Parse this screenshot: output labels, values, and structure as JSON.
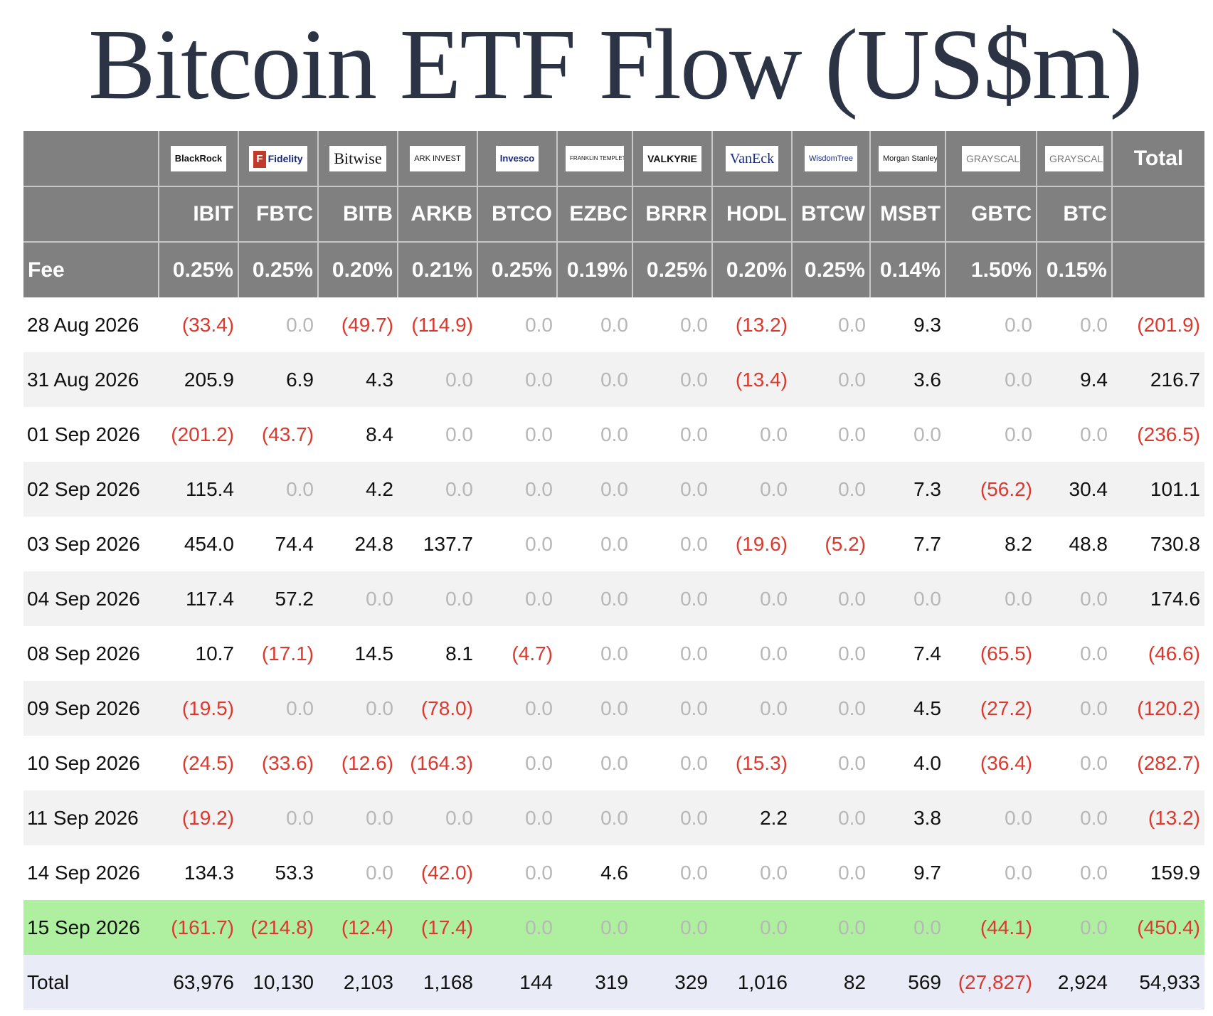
{
  "title": "Bitcoin ETF Flow (US$m)",
  "colors": {
    "header_bg": "#808080",
    "negative": "#d93a30",
    "zero": "#b7b7b7",
    "highlight_row": "#aef0a0",
    "total_row": "#e9ecf6",
    "title": "#2c3345"
  },
  "header": {
    "total_label": "Total",
    "fee_label": "Fee",
    "logos": [
      "BlackRock",
      "Fidelity",
      "Bitwise",
      "ARK INVEST",
      "Invesco",
      "FRANKLIN TEMPLETON",
      "VALKYRIE",
      "VanEck",
      "WisdomTree",
      "Morgan Stanley",
      "GRAYSCALE",
      "GRAYSCALE"
    ],
    "tickers": [
      "IBIT",
      "FBTC",
      "BITB",
      "ARKB",
      "BTCO",
      "EZBC",
      "BRRR",
      "HODL",
      "BTCW",
      "MSBT",
      "GBTC",
      "BTC"
    ],
    "fees": [
      "0.25%",
      "0.25%",
      "0.20%",
      "0.21%",
      "0.25%",
      "0.19%",
      "0.25%",
      "0.20%",
      "0.25%",
      "0.14%",
      "1.50%",
      "0.15%"
    ]
  },
  "rows": [
    {
      "date": "28 Aug 2026",
      "values": [
        "(33.4)",
        "0.0",
        "(49.7)",
        "(114.9)",
        "0.0",
        "0.0",
        "0.0",
        "(13.2)",
        "0.0",
        "9.3",
        "0.0",
        "0.0"
      ],
      "total": "(201.9)"
    },
    {
      "date": "31 Aug 2026",
      "values": [
        "205.9",
        "6.9",
        "4.3",
        "0.0",
        "0.0",
        "0.0",
        "0.0",
        "(13.4)",
        "0.0",
        "3.6",
        "0.0",
        "9.4"
      ],
      "total": "216.7"
    },
    {
      "date": "01 Sep 2026",
      "values": [
        "(201.2)",
        "(43.7)",
        "8.4",
        "0.0",
        "0.0",
        "0.0",
        "0.0",
        "0.0",
        "0.0",
        "0.0",
        "0.0",
        "0.0"
      ],
      "total": "(236.5)"
    },
    {
      "date": "02 Sep 2026",
      "values": [
        "115.4",
        "0.0",
        "4.2",
        "0.0",
        "0.0",
        "0.0",
        "0.0",
        "0.0",
        "0.0",
        "7.3",
        "(56.2)",
        "30.4"
      ],
      "total": "101.1"
    },
    {
      "date": "03 Sep 2026",
      "values": [
        "454.0",
        "74.4",
        "24.8",
        "137.7",
        "0.0",
        "0.0",
        "0.0",
        "(19.6)",
        "(5.2)",
        "7.7",
        "8.2",
        "48.8"
      ],
      "total": "730.8"
    },
    {
      "date": "04 Sep 2026",
      "values": [
        "117.4",
        "57.2",
        "0.0",
        "0.0",
        "0.0",
        "0.0",
        "0.0",
        "0.0",
        "0.0",
        "0.0",
        "0.0",
        "0.0"
      ],
      "total": "174.6"
    },
    {
      "date": "08 Sep 2026",
      "values": [
        "10.7",
        "(17.1)",
        "14.5",
        "8.1",
        "(4.7)",
        "0.0",
        "0.0",
        "0.0",
        "0.0",
        "7.4",
        "(65.5)",
        "0.0"
      ],
      "total": "(46.6)"
    },
    {
      "date": "09 Sep 2026",
      "values": [
        "(19.5)",
        "0.0",
        "0.0",
        "(78.0)",
        "0.0",
        "0.0",
        "0.0",
        "0.0",
        "0.0",
        "4.5",
        "(27.2)",
        "0.0"
      ],
      "total": "(120.2)"
    },
    {
      "date": "10 Sep 2026",
      "values": [
        "(24.5)",
        "(33.6)",
        "(12.6)",
        "(164.3)",
        "0.0",
        "0.0",
        "0.0",
        "(15.3)",
        "0.0",
        "4.0",
        "(36.4)",
        "0.0"
      ],
      "total": "(282.7)"
    },
    {
      "date": "11 Sep 2026",
      "values": [
        "(19.2)",
        "0.0",
        "0.0",
        "0.0",
        "0.0",
        "0.0",
        "0.0",
        "2.2",
        "0.0",
        "3.8",
        "0.0",
        "0.0"
      ],
      "total": "(13.2)"
    },
    {
      "date": "14 Sep 2026",
      "values": [
        "134.3",
        "53.3",
        "0.0",
        "(42.0)",
        "0.0",
        "4.6",
        "0.0",
        "0.0",
        "0.0",
        "9.7",
        "0.0",
        "0.0"
      ],
      "total": "159.9"
    },
    {
      "date": "15 Sep 2026",
      "values": [
        "(161.7)",
        "(214.8)",
        "(12.4)",
        "(17.4)",
        "0.0",
        "0.0",
        "0.0",
        "0.0",
        "0.0",
        "0.0",
        "(44.1)",
        "0.0"
      ],
      "total": "(450.4)",
      "highlight": true
    }
  ],
  "totals": {
    "label": "Total",
    "values": [
      "63,976",
      "10,130",
      "2,103",
      "1,168",
      "144",
      "319",
      "329",
      "1,016",
      "82",
      "569",
      "(27,827)",
      "2,924"
    ],
    "total": "54,933"
  }
}
